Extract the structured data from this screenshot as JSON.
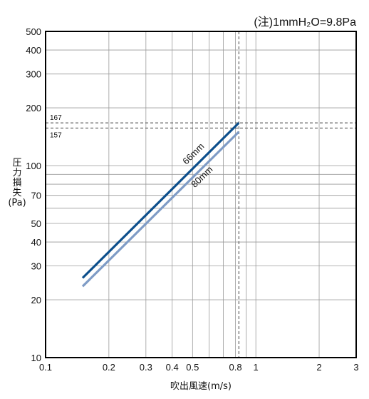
{
  "note": "(注)1mmH₂O=9.8Pa",
  "chart_data": {
    "type": "line",
    "xscale": "log",
    "yscale": "log",
    "xlim": [
      0.1,
      3
    ],
    "ylim": [
      10,
      500
    ],
    "xlabel": "吹出風速(m/s)",
    "ylabel": [
      "圧",
      "力",
      "損",
      "失",
      "(Pa)"
    ],
    "grid": true,
    "x_ticks": [
      {
        "v": 0.1,
        "label": "0.1"
      },
      {
        "v": 0.2,
        "label": "0.2"
      },
      {
        "v": 0.3,
        "label": "0.3"
      },
      {
        "v": 0.4,
        "label": "0.4"
      },
      {
        "v": 0.5,
        "label": "0.5"
      },
      {
        "v": 0.8,
        "label": "0.8"
      },
      {
        "v": 1,
        "label": "1"
      },
      {
        "v": 2,
        "label": "2"
      },
      {
        "v": 3,
        "label": "3"
      }
    ],
    "x_grid": [
      0.2,
      0.3,
      0.4,
      0.5,
      0.6,
      0.7,
      0.8,
      0.9,
      1,
      2
    ],
    "y_ticks": [
      {
        "v": 10,
        "label": "10"
      },
      {
        "v": 20,
        "label": "20"
      },
      {
        "v": 30,
        "label": "30"
      },
      {
        "v": 40,
        "label": "40"
      },
      {
        "v": 50,
        "label": "50"
      },
      {
        "v": 70,
        "label": "70"
      },
      {
        "v": 100,
        "label": "100"
      },
      {
        "v": 200,
        "label": "200"
      },
      {
        "v": 300,
        "label": "300"
      },
      {
        "v": 400,
        "label": "400"
      },
      {
        "v": 500,
        "label": "500"
      }
    ],
    "y_grid": [
      20,
      30,
      40,
      50,
      60,
      70,
      80,
      90,
      100,
      200,
      300,
      400
    ],
    "reference_lines": {
      "horizontal": [
        {
          "v": 167,
          "label": "167"
        },
        {
          "v": 157,
          "label": "157"
        }
      ],
      "vertical": [
        {
          "v": 0.83
        }
      ]
    },
    "series": [
      {
        "name": "66mm",
        "color": "#0d4f8c",
        "x": [
          0.15,
          0.83
        ],
        "y": [
          26,
          167
        ]
      },
      {
        "name": "80mm",
        "color": "#7f9cc6",
        "x": [
          0.15,
          0.83
        ],
        "y": [
          23.5,
          150
        ]
      }
    ]
  }
}
